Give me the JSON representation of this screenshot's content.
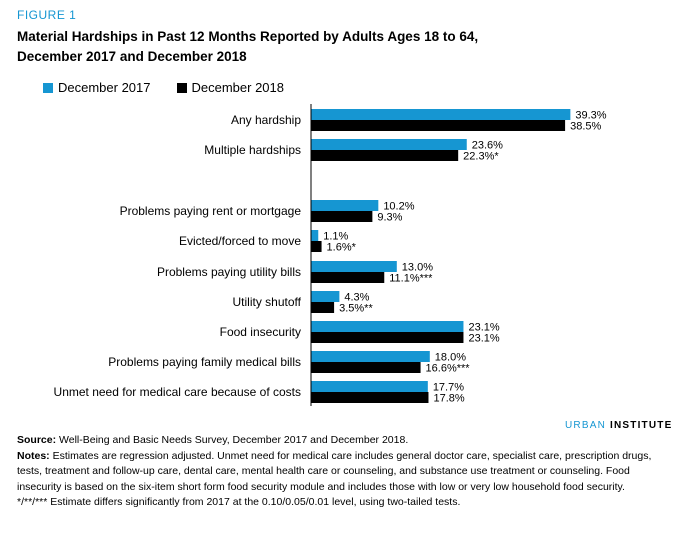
{
  "figure_label": "FIGURE 1",
  "title_lines": [
    "Material Hardships in Past 12 Months Reported by Adults Ages 18 to 64,",
    "December 2017 and December 2018"
  ],
  "colors": {
    "series_2017": "#1696d2",
    "series_2018": "#000000",
    "axis": "#000000"
  },
  "brand": {
    "part1": "URBAN",
    "part2": "INSTITUTE"
  },
  "notes": {
    "source_label": "Source:",
    "source_text": "Well-Being and Basic Needs Survey, December 2017 and December 2018.",
    "notes_label": "Notes:",
    "notes_text": "Estimates are regression adjusted. Unmet need for medical care includes general doctor care, specialist care, prescription drugs, tests, treatment and follow-up care, dental care, mental health care or counseling, and substance use treatment or counseling. Food insecurity is based on the six-item short form food security module and includes those with low or very low household food security.",
    "significance": "*/**/*** Estimate differs significantly from 2017 at the 0.10/0.05/0.01 level, using two-tailed tests."
  },
  "chart_data": {
    "type": "bar",
    "orientation": "horizontal",
    "title": "Material Hardships in Past 12 Months Reported by Adults Ages 18 to 64, December 2017 and December 2018",
    "legend_position": "top-left",
    "xlim": [
      0,
      45
    ],
    "categories": [
      "Any hardship",
      "Multiple hardships",
      "Problems paying rent or mortgage",
      "Evicted/forced to move",
      "Problems paying utility bills",
      "Utility shutoff",
      "Food insecurity",
      "Problems paying family medical bills",
      "Unmet need for medical care because of costs"
    ],
    "series": [
      {
        "name": "December 2017",
        "values": [
          39.3,
          23.6,
          10.2,
          1.1,
          13.0,
          4.3,
          23.1,
          18.0,
          17.7
        ],
        "labels": [
          "39.3%",
          "23.6%",
          "10.2%",
          "1.1%",
          "13.0%",
          "4.3%",
          "23.1%",
          "18.0%",
          "17.7%"
        ]
      },
      {
        "name": "December 2018",
        "values": [
          38.5,
          22.3,
          9.3,
          1.6,
          11.1,
          3.5,
          23.1,
          16.6,
          17.8
        ],
        "labels": [
          "38.5%",
          "22.3%*",
          "9.3%",
          "1.6%*",
          "11.1%***",
          "3.5%**",
          "23.1%",
          "16.6%***",
          "17.8%"
        ]
      }
    ]
  }
}
